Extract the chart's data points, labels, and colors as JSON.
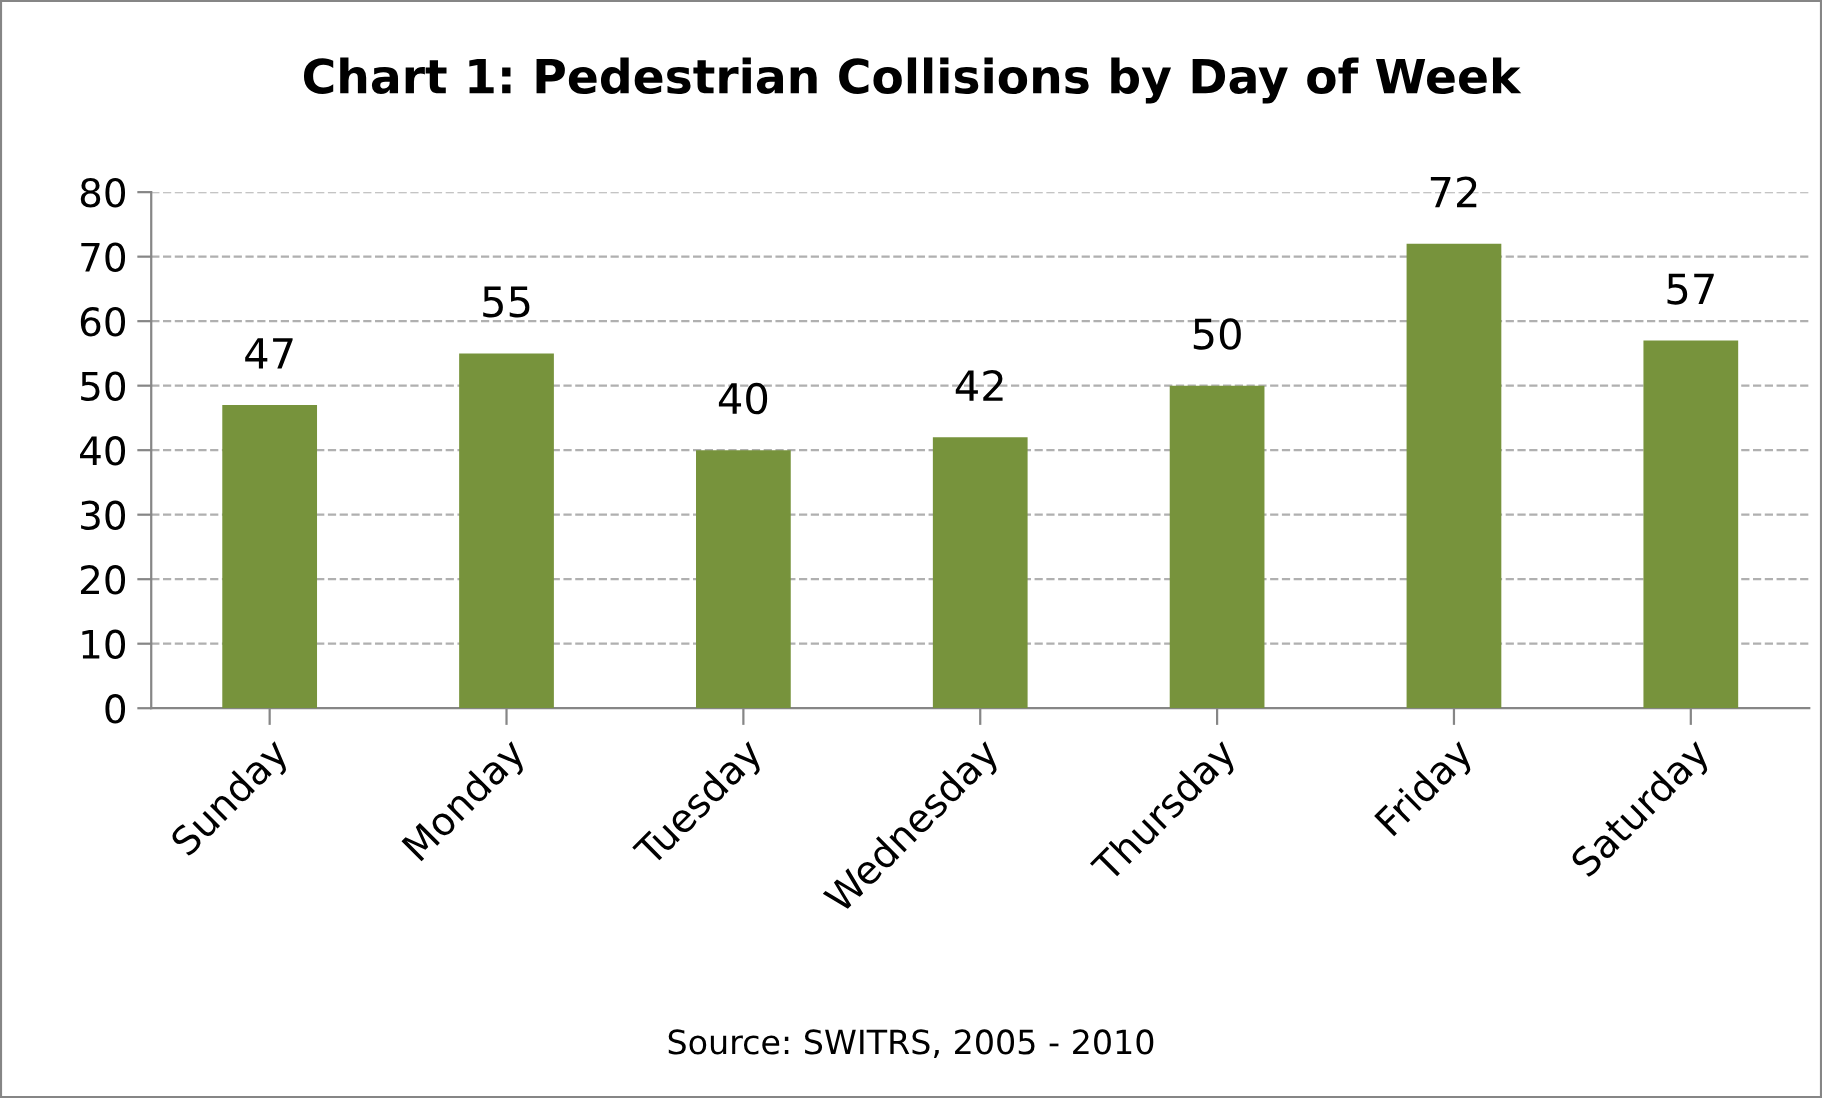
{
  "chart_data": {
    "type": "bar",
    "title": "Chart 1: Pedestrian Collisions by Day of Week",
    "categories": [
      "Sunday",
      "Monday",
      "Tuesday",
      "Wednesday",
      "Thursday",
      "Friday",
      "Saturday"
    ],
    "values": [
      47,
      55,
      40,
      42,
      50,
      72,
      57
    ],
    "color": "#77933c",
    "ylim": [
      0,
      80
    ],
    "yticks": [
      0,
      10,
      20,
      30,
      40,
      50,
      60,
      70,
      80
    ],
    "grid": "y",
    "data_labels": true,
    "annotations": [
      "Source: SWITRS, 2005 - 2010"
    ]
  }
}
